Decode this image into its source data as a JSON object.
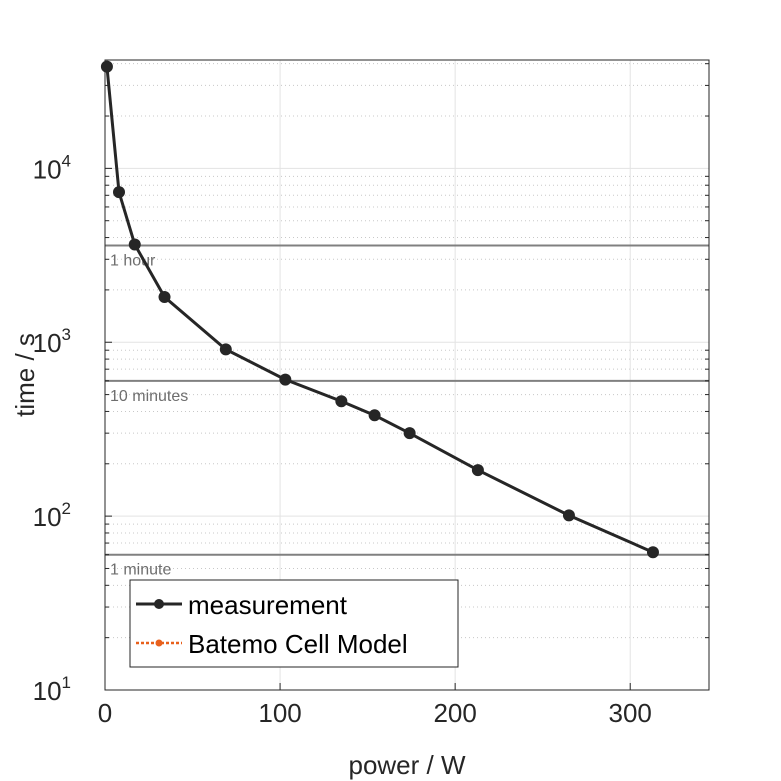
{
  "chart_data": {
    "type": "line",
    "title": "",
    "xlabel": "power / W",
    "ylabel": "time / s",
    "xlim": [
      0,
      345
    ],
    "ylim": [
      10,
      42000
    ],
    "yscale": "log",
    "grid": true,
    "minor_grid": true,
    "x_ticks": [
      0,
      100,
      200,
      300
    ],
    "x_tick_labels": [
      "0",
      "100",
      "200",
      "300"
    ],
    "y_ticks": [
      10,
      100,
      1000,
      10000
    ],
    "y_tick_labels": [
      {
        "base": "10",
        "exp": "1"
      },
      {
        "base": "10",
        "exp": "2"
      },
      {
        "base": "10",
        "exp": "3"
      },
      {
        "base": "10",
        "exp": "4"
      }
    ],
    "legend_position": "bottom-left",
    "series": [
      {
        "name": "measurement",
        "color": "#262626",
        "marker": "circle",
        "x": [
          1.1,
          8,
          17,
          34,
          69,
          103,
          135,
          154,
          174,
          213,
          265,
          313
        ],
        "y": [
          38500,
          7300,
          3650,
          1820,
          910,
          610,
          458,
          380,
          300,
          184,
          101,
          62
        ]
      },
      {
        "name": "Batemo Cell Model",
        "color": "#E8601C",
        "marker": "circle",
        "linestyle": "dotted",
        "x": [],
        "y": []
      }
    ],
    "reference_lines": [
      {
        "y": 3600,
        "label": "1 hour",
        "color": "#808080"
      },
      {
        "y": 600,
        "label": "10 minutes",
        "color": "#808080"
      },
      {
        "y": 60,
        "label": "1 minute",
        "color": "#808080"
      }
    ]
  }
}
